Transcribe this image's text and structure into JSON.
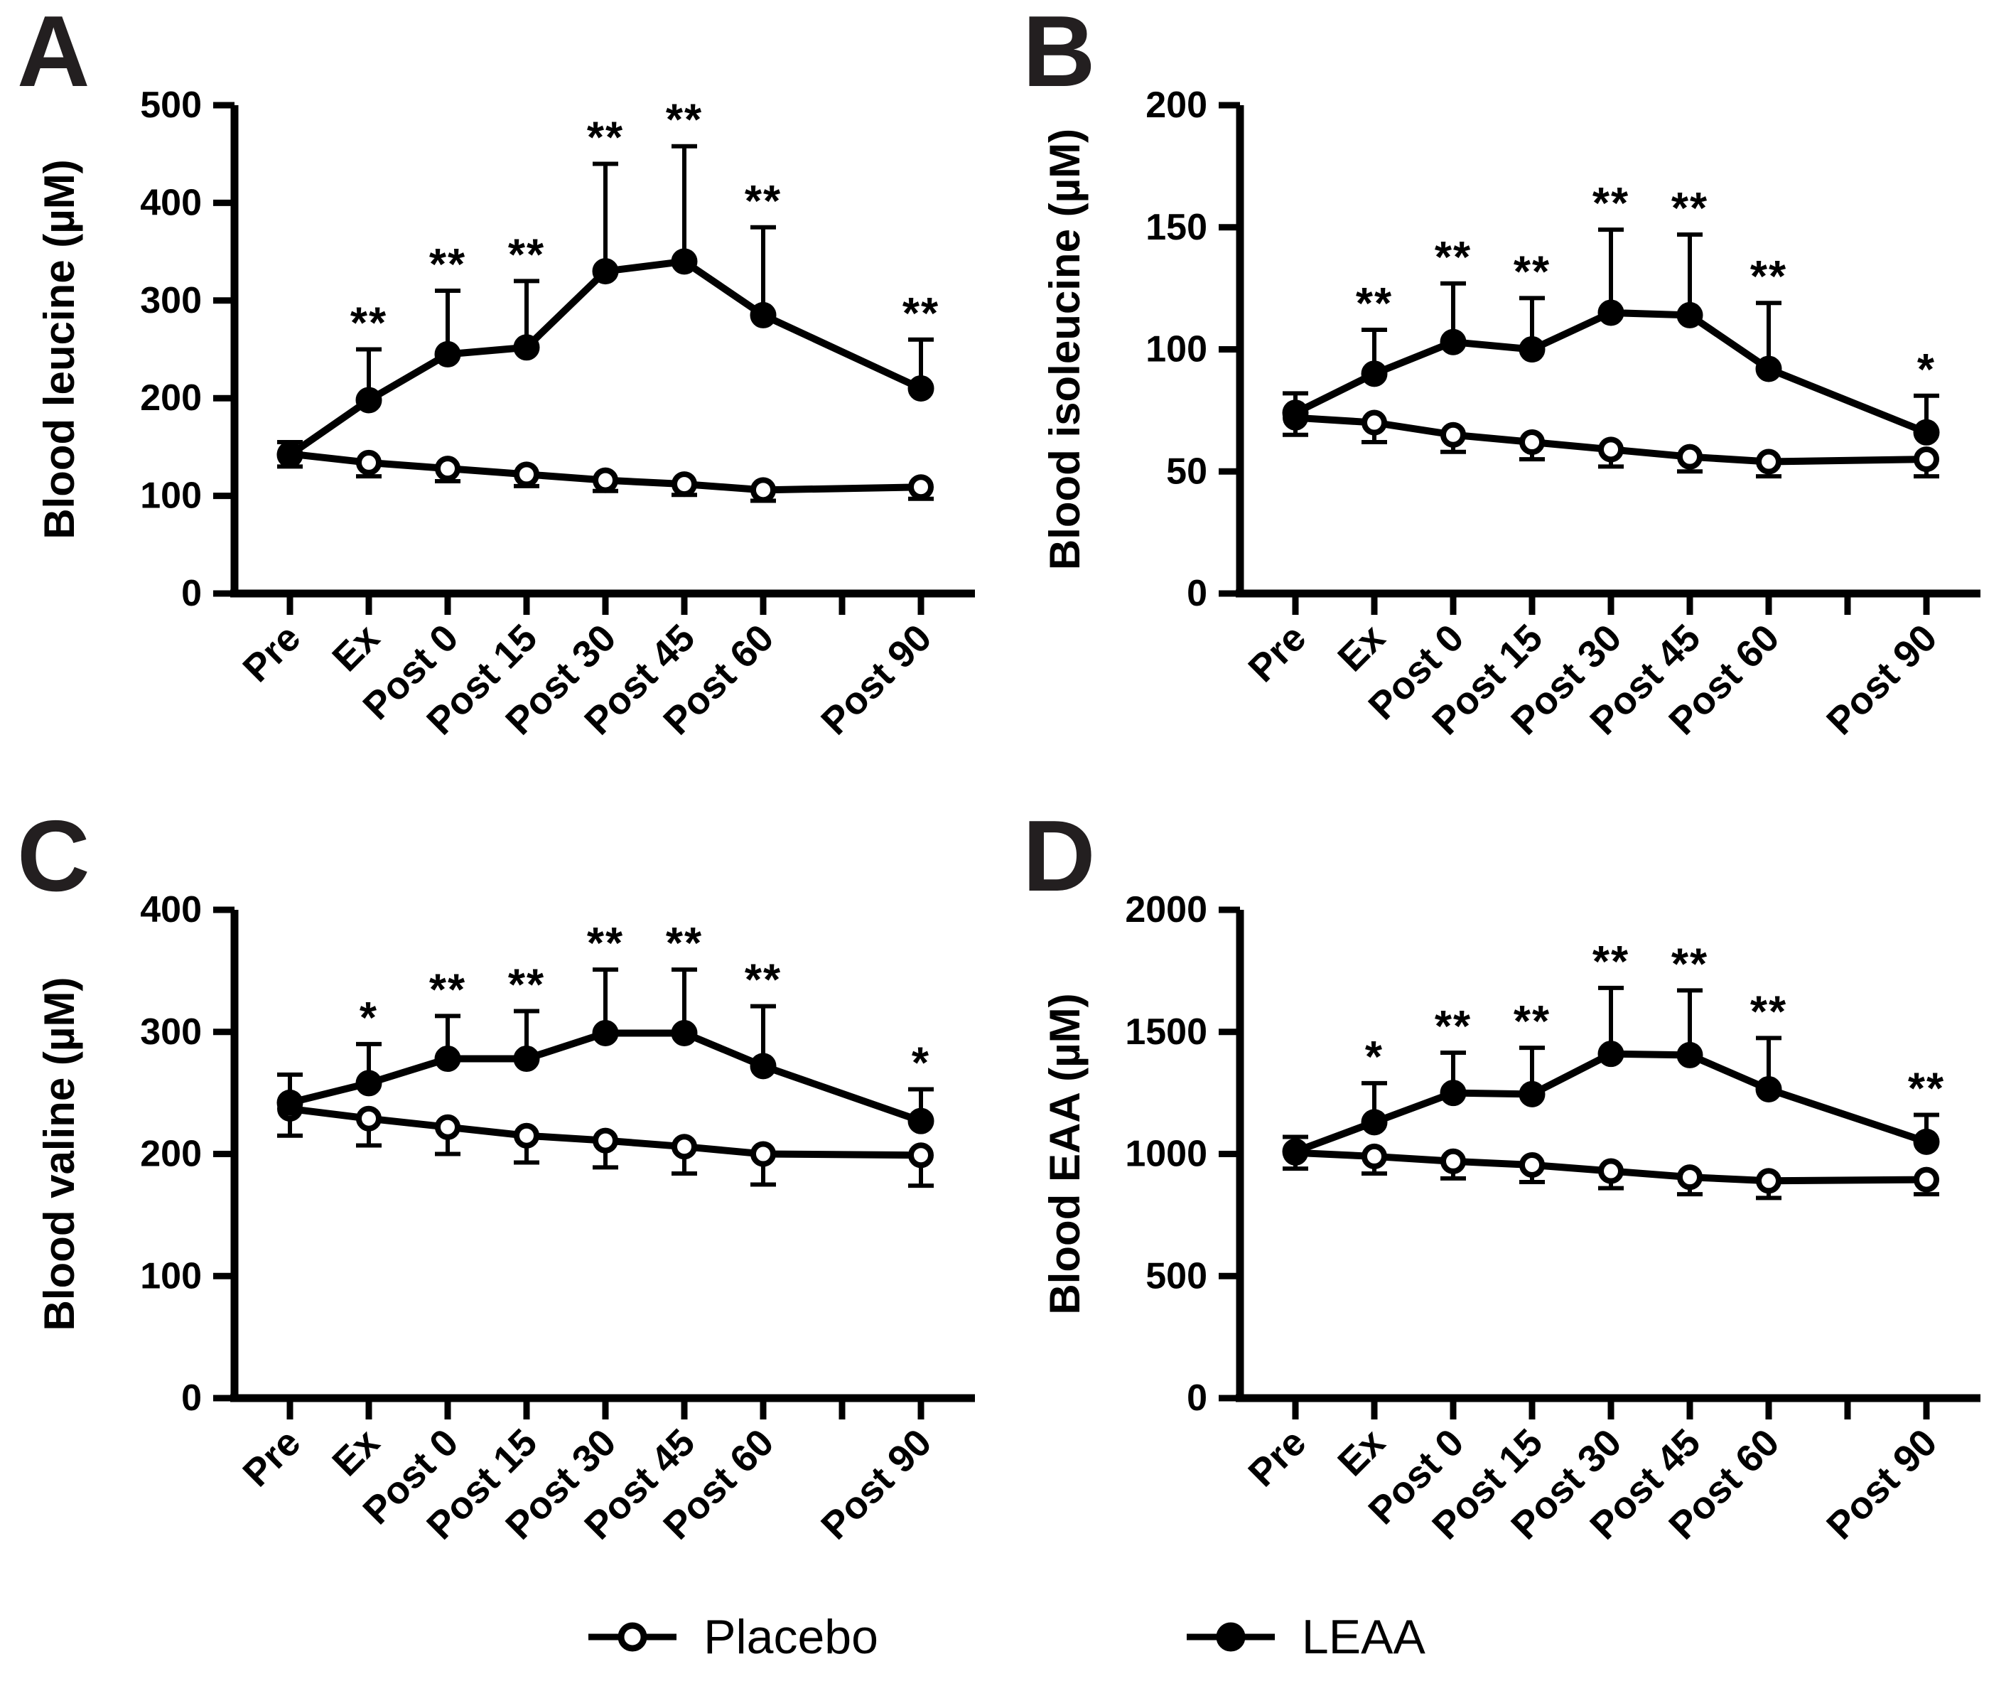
{
  "figure_title": "",
  "legend": [
    {
      "label": "Placebo",
      "marker": "open"
    },
    {
      "label": "LEAA",
      "marker": "filled"
    }
  ],
  "colors": {
    "ink": "#000000",
    "panel_letter": "#231f20",
    "background": "#ffffff"
  },
  "chart_data": [
    {
      "panel": "A",
      "letter": "A",
      "type": "line",
      "title": "",
      "xlabel": "",
      "ylabel": "Blood leucine (µM)",
      "ylim": [
        0,
        500
      ],
      "yticks": [
        0,
        100,
        200,
        300,
        400,
        500
      ],
      "categories": [
        "Pre",
        "Ex",
        "Post 0",
        "Post 15",
        "Post 30",
        "Post 45",
        "Post 60",
        "Post 90"
      ],
      "tick_slots": [
        0,
        1,
        2,
        3,
        4,
        5,
        6,
        8
      ],
      "total_slots": 9,
      "grid": false,
      "series": [
        {
          "name": "Placebo",
          "marker": "open",
          "err_dir": "down",
          "values": [
            143,
            134,
            128,
            122,
            116,
            112,
            106,
            109
          ],
          "err": [
            13,
            14,
            13,
            12,
            11,
            11,
            11,
            12
          ]
        },
        {
          "name": "LEAA",
          "marker": "filled",
          "err_dir": "up",
          "values": [
            142,
            198,
            245,
            252,
            330,
            340,
            285,
            210
          ],
          "err": [
            13,
            52,
            65,
            68,
            110,
            118,
            90,
            50
          ]
        }
      ],
      "significance": [
        "",
        "**",
        "**",
        "**",
        "**",
        "**",
        "**",
        "**"
      ]
    },
    {
      "panel": "B",
      "letter": "B",
      "type": "line",
      "title": "",
      "xlabel": "",
      "ylabel": "Blood isoleucine (µM)",
      "ylim": [
        0,
        200
      ],
      "yticks": [
        0,
        50,
        100,
        150,
        200
      ],
      "categories": [
        "Pre",
        "Ex",
        "Post 0",
        "Post 15",
        "Post 30",
        "Post 45",
        "Post 60",
        "Post 90"
      ],
      "tick_slots": [
        0,
        1,
        2,
        3,
        4,
        5,
        6,
        8
      ],
      "total_slots": 9,
      "grid": false,
      "series": [
        {
          "name": "Placebo",
          "marker": "open",
          "err_dir": "down",
          "values": [
            72,
            70,
            65,
            62,
            59,
            56,
            54,
            55
          ],
          "err": [
            7,
            8,
            7,
            7,
            7,
            6,
            6,
            7
          ]
        },
        {
          "name": "LEAA",
          "marker": "filled",
          "err_dir": "up",
          "values": [
            74,
            90,
            103,
            100,
            115,
            114,
            92,
            66
          ],
          "err": [
            8,
            18,
            24,
            21,
            34,
            33,
            27,
            15
          ]
        }
      ],
      "significance": [
        "",
        "**",
        "**",
        "**",
        "**",
        "**",
        "**",
        "*"
      ]
    },
    {
      "panel": "C",
      "letter": "C",
      "type": "line",
      "title": "",
      "xlabel": "",
      "ylabel": "Blood valine (µM)",
      "ylim": [
        0,
        400
      ],
      "yticks": [
        0,
        100,
        200,
        300,
        400
      ],
      "categories": [
        "Pre",
        "Ex",
        "Post 0",
        "Post 15",
        "Post 30",
        "Post 45",
        "Post 60",
        "Post 90"
      ],
      "tick_slots": [
        0,
        1,
        2,
        3,
        4,
        5,
        6,
        8
      ],
      "total_slots": 9,
      "grid": false,
      "series": [
        {
          "name": "Placebo",
          "marker": "open",
          "err_dir": "down",
          "values": [
            237,
            229,
            222,
            215,
            211,
            206,
            200,
            199
          ],
          "err": [
            22,
            22,
            22,
            22,
            22,
            22,
            25,
            25
          ]
        },
        {
          "name": "LEAA",
          "marker": "filled",
          "err_dir": "up",
          "values": [
            242,
            258,
            278,
            278,
            299,
            299,
            272,
            227
          ],
          "err": [
            23,
            32,
            35,
            39,
            52,
            52,
            49,
            26
          ]
        }
      ],
      "significance": [
        "",
        "*",
        "**",
        "**",
        "**",
        "**",
        "**",
        "*"
      ]
    },
    {
      "panel": "D",
      "letter": "D",
      "type": "line",
      "title": "",
      "xlabel": "",
      "ylabel": "Blood EAA (µM)",
      "ylim": [
        0,
        2000
      ],
      "yticks": [
        0,
        500,
        1000,
        1500,
        2000
      ],
      "categories": [
        "Pre",
        "Ex",
        "Post 0",
        "Post 15",
        "Post 30",
        "Post 45",
        "Post 60",
        "Post 90"
      ],
      "tick_slots": [
        0,
        1,
        2,
        3,
        4,
        5,
        6,
        8
      ],
      "total_slots": 9,
      "grid": false,
      "series": [
        {
          "name": "Placebo",
          "marker": "open",
          "err_dir": "down",
          "values": [
            1005,
            990,
            970,
            955,
            930,
            905,
            890,
            895
          ],
          "err": [
            65,
            70,
            70,
            70,
            70,
            70,
            70,
            60
          ]
        },
        {
          "name": "LEAA",
          "marker": "filled",
          "err_dir": "up",
          "values": [
            1010,
            1130,
            1250,
            1245,
            1410,
            1405,
            1265,
            1050
          ],
          "err": [
            60,
            160,
            165,
            190,
            270,
            265,
            210,
            110
          ]
        }
      ],
      "significance": [
        "",
        "*",
        "**",
        "**",
        "**",
        "**",
        "**",
        "**"
      ]
    }
  ]
}
